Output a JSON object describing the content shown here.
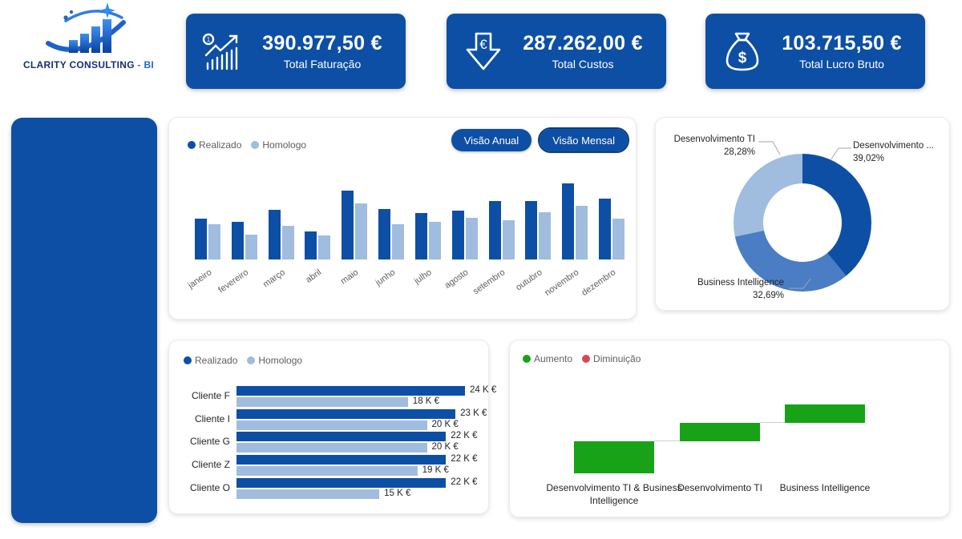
{
  "brand": {
    "name_main": "CLARITY CONSULTING",
    "name_suffix": "- BI"
  },
  "kpis": [
    {
      "icon": "trend-chart-icon",
      "value": "390.977,50 €",
      "label": "Total Faturação"
    },
    {
      "icon": "euro-down-arrow-icon",
      "value": "287.262,00 €",
      "label": "Total Custos"
    },
    {
      "icon": "money-bag-icon",
      "value": "103.715,50 €",
      "label": "Total Lucro Bruto"
    }
  ],
  "buttons": {
    "visao_anual": "Visão Anual",
    "visao_mensal": "Visão Mensal"
  },
  "colors": {
    "primary_blue": "#0d4fa5",
    "light_blue": "#a0bcdf",
    "mid_blue": "#4a7dc4",
    "green": "#17a217",
    "red": "#d04a54",
    "text_gray": "#605e5c",
    "text_dark": "#252423"
  },
  "chart_data": [
    {
      "id": "monthly",
      "type": "bar",
      "title": "",
      "categories": [
        "janeiro",
        "fevereiro",
        "março",
        "abril",
        "maio",
        "junho",
        "julho",
        "agosto",
        "setembro",
        "outubro",
        "novembro",
        "dezembro"
      ],
      "series": [
        {
          "name": "Realizado",
          "color": "#0d4fa5",
          "values": [
            24.5,
            22.5,
            30,
            17,
            41.5,
            30.5,
            28,
            29.5,
            35,
            35,
            45.5,
            36.5
          ]
        },
        {
          "name": "Homologo",
          "color": "#a0bcdf",
          "values": [
            21,
            15,
            20,
            14.5,
            33.5,
            21,
            22.5,
            25,
            23.5,
            28.5,
            32,
            24.5
          ]
        }
      ],
      "ylim": [
        0,
        48
      ],
      "unit": "K €",
      "legend_position": "top-left",
      "grid": false
    },
    {
      "id": "services-donut",
      "type": "pie",
      "title": "",
      "slices": [
        {
          "label": "Desenvolvimento ...",
          "pct_label": "39,02%",
          "value": 39.02,
          "color": "#0d4fa5"
        },
        {
          "label": "Business Intelligence",
          "pct_label": "32,69%",
          "value": 32.69,
          "color": "#4a7dc4"
        },
        {
          "label": "Desenvolvimento TI",
          "pct_label": "28,28%",
          "value": 28.28,
          "color": "#a0bcdf"
        }
      ],
      "donut": true
    },
    {
      "id": "clients",
      "type": "bar",
      "orientation": "horizontal",
      "title": "",
      "categories": [
        "Cliente F",
        "Cliente I",
        "Cliente G",
        "Cliente Z",
        "Cliente O"
      ],
      "series": [
        {
          "name": "Realizado",
          "color": "#0d4fa5",
          "values": [
            24,
            23,
            22,
            22,
            22
          ],
          "labels": [
            "24 K €",
            "23 K €",
            "22 K €",
            "22 K €",
            "22 K €"
          ]
        },
        {
          "name": "Homologo",
          "color": "#a0bcdf",
          "values": [
            18,
            20,
            20,
            19,
            15
          ],
          "labels": [
            "18 K €",
            "20 K €",
            "20 K €",
            "19 K €",
            "15 K €"
          ]
        }
      ],
      "xlim": [
        0,
        24
      ],
      "unit": "K €",
      "legend_position": "top-left",
      "grid": false
    },
    {
      "id": "waterfall",
      "type": "bar",
      "subtype": "waterfall",
      "title": "",
      "categories": [
        "Desenvolvimento TI & Business Intelligence",
        "Desenvolvimento TI",
        "Business Intelligence"
      ],
      "values": [
        48,
        28,
        27
      ],
      "unit": "K €",
      "legend": [
        {
          "label": "Aumento",
          "color": "#17a217"
        },
        {
          "label": "Diminuição",
          "color": "#d04a54"
        }
      ],
      "grid": false
    }
  ]
}
